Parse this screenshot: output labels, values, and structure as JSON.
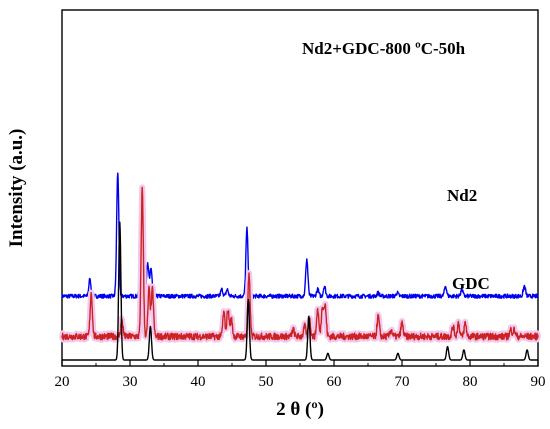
{
  "chart_data": {
    "type": "line",
    "xlabel": "2 θ (º)",
    "ylabel": "Intensity (a.u.)",
    "xlim": [
      20,
      90
    ],
    "xticks": [
      "20",
      "30",
      "40",
      "50",
      "60",
      "70",
      "80",
      "90"
    ],
    "grid": false,
    "series": [
      {
        "name": "Nd2+GDC-800 ºC-50h",
        "color": "#0000ee",
        "baseline": 0.19,
        "noise": 0.012,
        "peaks": [
          {
            "x": 24.1,
            "h": 0.05
          },
          {
            "x": 28.2,
            "h": 0.37
          },
          {
            "x": 31.6,
            "h": 0.2
          },
          {
            "x": 32.6,
            "h": 0.1
          },
          {
            "x": 33.1,
            "h": 0.08
          },
          {
            "x": 43.5,
            "h": 0.02
          },
          {
            "x": 44.3,
            "h": 0.02
          },
          {
            "x": 47.2,
            "h": 0.2
          },
          {
            "x": 56.0,
            "h": 0.11
          },
          {
            "x": 57.6,
            "h": 0.02
          },
          {
            "x": 58.6,
            "h": 0.03
          },
          {
            "x": 66.5,
            "h": 0.01
          },
          {
            "x": 69.3,
            "h": 0.01
          },
          {
            "x": 76.4,
            "h": 0.03
          },
          {
            "x": 78.8,
            "h": 0.02
          },
          {
            "x": 88.0,
            "h": 0.03
          }
        ]
      },
      {
        "name": "Nd2",
        "color": "#cc2222",
        "band": "#f2c8ee",
        "baseline": 0.07,
        "noise": 0.02,
        "peaks": [
          {
            "x": 24.3,
            "h": 0.13
          },
          {
            "x": 28.8,
            "h": 0.05
          },
          {
            "x": 31.8,
            "h": 0.44
          },
          {
            "x": 32.8,
            "h": 0.14
          },
          {
            "x": 33.3,
            "h": 0.14
          },
          {
            "x": 43.8,
            "h": 0.07
          },
          {
            "x": 44.4,
            "h": 0.08
          },
          {
            "x": 44.9,
            "h": 0.05
          },
          {
            "x": 47.5,
            "h": 0.18
          },
          {
            "x": 54.0,
            "h": 0.02
          },
          {
            "x": 55.7,
            "h": 0.03
          },
          {
            "x": 56.4,
            "h": 0.05
          },
          {
            "x": 57.6,
            "h": 0.08
          },
          {
            "x": 58.3,
            "h": 0.09
          },
          {
            "x": 58.7,
            "h": 0.09
          },
          {
            "x": 66.5,
            "h": 0.06
          },
          {
            "x": 68.4,
            "h": 0.02
          },
          {
            "x": 70.0,
            "h": 0.04
          },
          {
            "x": 77.5,
            "h": 0.03
          },
          {
            "x": 78.3,
            "h": 0.04
          },
          {
            "x": 79.3,
            "h": 0.04
          },
          {
            "x": 86.0,
            "h": 0.02
          },
          {
            "x": 86.5,
            "h": 0.02
          }
        ]
      },
      {
        "name": "GDC",
        "color": "#000000",
        "baseline": 0.0,
        "noise": 0.0,
        "peaks": [
          {
            "x": 28.5,
            "h": 0.41
          },
          {
            "x": 33.0,
            "h": 0.1
          },
          {
            "x": 47.4,
            "h": 0.18
          },
          {
            "x": 56.3,
            "h": 0.13
          },
          {
            "x": 59.1,
            "h": 0.02
          },
          {
            "x": 69.4,
            "h": 0.02
          },
          {
            "x": 76.7,
            "h": 0.04
          },
          {
            "x": 79.1,
            "h": 0.03
          },
          {
            "x": 88.4,
            "h": 0.03
          }
        ]
      }
    ]
  }
}
